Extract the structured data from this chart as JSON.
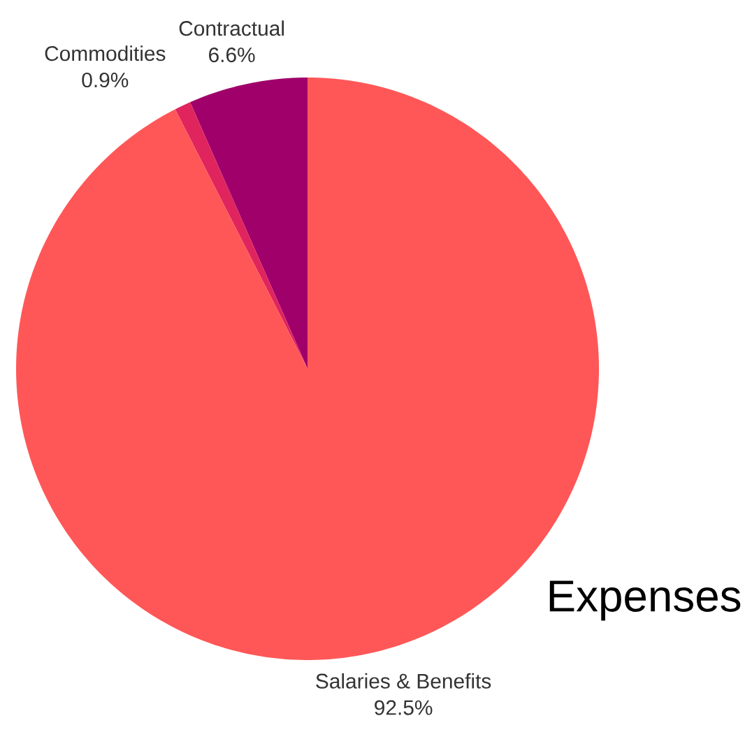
{
  "chart_data": {
    "type": "pie",
    "title": "Expenses",
    "categories": [
      "Contractual",
      "Commodities",
      "Salaries & Benefits"
    ],
    "values": [
      6.6,
      0.9,
      92.5
    ],
    "value_labels": [
      "6.6%",
      "0.9%",
      "92.5%"
    ],
    "colors": [
      "#a0006a",
      "#e0245e",
      "#ff5757"
    ]
  }
}
